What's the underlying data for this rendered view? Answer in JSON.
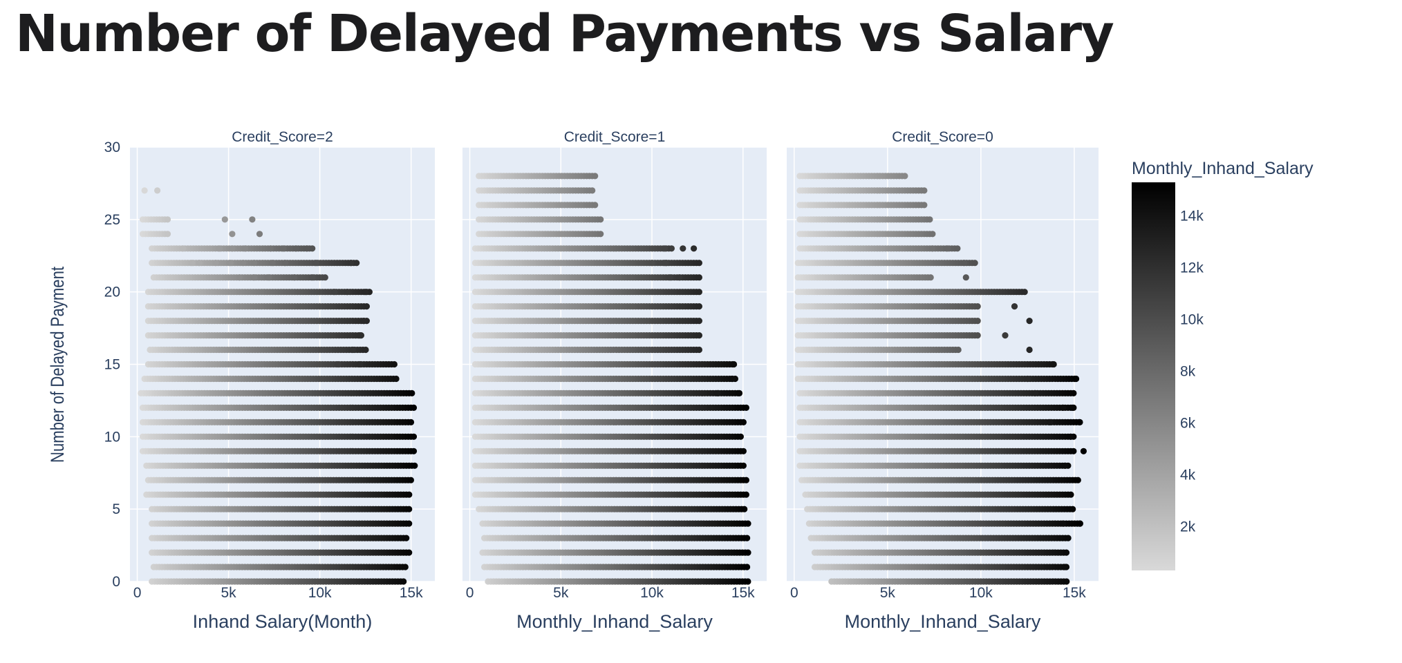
{
  "page": {
    "title": "Number of Delayed Payments vs Salary"
  },
  "chart_data": {
    "type": "scatter",
    "facets": [
      {
        "label": "Credit_Score=2",
        "xlabel": "Inhand Salary(Month)",
        "rows": [
          [
            0,
            0.8,
            14.6
          ],
          [
            1,
            0.9,
            14.8
          ],
          [
            2,
            0.8,
            14.9
          ],
          [
            3,
            0.8,
            14.8
          ],
          [
            4,
            0.8,
            15.0
          ],
          [
            5,
            0.8,
            15.0
          ],
          [
            6,
            0.5,
            15.0
          ],
          [
            7,
            0.6,
            15.0
          ],
          [
            8,
            0.5,
            15.2
          ],
          [
            9,
            0.3,
            15.2
          ],
          [
            10,
            0.3,
            15.2
          ],
          [
            11,
            0.3,
            15.1
          ],
          [
            12,
            0.3,
            15.2
          ],
          [
            13,
            0.2,
            15.1
          ],
          [
            14,
            0.4,
            14.2
          ],
          [
            15,
            0.6,
            14.2
          ],
          [
            16,
            0.7,
            12.6
          ],
          [
            17,
            0.6,
            12.3
          ],
          [
            18,
            0.6,
            12.7
          ],
          [
            19,
            0.6,
            12.6
          ],
          [
            20,
            0.6,
            12.8
          ],
          [
            21,
            0.9,
            10.3
          ],
          [
            22,
            0.8,
            12.1
          ],
          [
            23,
            0.8,
            9.7
          ],
          [
            24,
            0.3,
            1.8
          ],
          [
            25,
            0.3,
            1.8
          ]
        ],
        "extra_points": [
          [
            0.4,
            27
          ],
          [
            1.1,
            27
          ],
          [
            4.8,
            25
          ],
          [
            6.3,
            25
          ],
          [
            5.2,
            24
          ],
          [
            6.7,
            24
          ],
          [
            4.5,
            23
          ],
          [
            5.2,
            23
          ],
          [
            5.9,
            23
          ],
          [
            7.3,
            23
          ],
          [
            8.0,
            23
          ],
          [
            8.7,
            23
          ],
          [
            9.3,
            23
          ],
          [
            2.5,
            23
          ],
          [
            3.0,
            22
          ],
          [
            3.4,
            22
          ],
          [
            4.3,
            22
          ],
          [
            5.1,
            22
          ],
          [
            5.8,
            22
          ],
          [
            6.4,
            22
          ],
          [
            7.4,
            22
          ],
          [
            8.1,
            22
          ],
          [
            9.8,
            22
          ],
          [
            11.7,
            22
          ],
          [
            5.6,
            21
          ],
          [
            6.4,
            21
          ],
          [
            7.2,
            21
          ],
          [
            8.6,
            21
          ],
          [
            9.6,
            21
          ],
          [
            10.8,
            20
          ],
          [
            11.5,
            20
          ],
          [
            12.5,
            20
          ],
          [
            12.4,
            18
          ],
          [
            12.2,
            17
          ],
          [
            11.8,
            16
          ],
          [
            11.0,
            15
          ],
          [
            12.2,
            15
          ]
        ]
      },
      {
        "label": "Credit_Score=1",
        "xlabel": "Monthly_Inhand_Salary",
        "rows": [
          [
            0,
            1.0,
            15.3
          ],
          [
            1,
            0.8,
            15.3
          ],
          [
            2,
            0.7,
            15.3
          ],
          [
            3,
            0.8,
            15.3
          ],
          [
            4,
            0.7,
            15.3
          ],
          [
            5,
            0.5,
            15.1
          ],
          [
            6,
            0.3,
            15.2
          ],
          [
            7,
            0.3,
            15.2
          ],
          [
            8,
            0.3,
            15.1
          ],
          [
            9,
            0.3,
            15.1
          ],
          [
            10,
            0.3,
            15.0
          ],
          [
            11,
            0.3,
            15.1
          ],
          [
            12,
            0.3,
            15.3
          ],
          [
            13,
            0.3,
            14.8
          ],
          [
            14,
            0.3,
            14.6
          ],
          [
            15,
            0.3,
            14.5
          ],
          [
            16,
            0.3,
            12.7
          ],
          [
            17,
            0.3,
            12.7
          ],
          [
            18,
            0.3,
            12.7
          ],
          [
            19,
            0.3,
            12.7
          ],
          [
            20,
            0.3,
            12.7
          ],
          [
            21,
            0.3,
            12.7
          ],
          [
            22,
            0.3,
            12.7
          ],
          [
            23,
            0.3,
            11.1
          ],
          [
            24,
            0.5,
            7.3
          ],
          [
            25,
            0.5,
            7.3
          ],
          [
            26,
            0.5,
            7.0
          ],
          [
            27,
            0.5,
            6.8
          ],
          [
            28,
            0.5,
            6.9
          ]
        ],
        "extra_points": [
          [
            12.3,
            23
          ],
          [
            11.7,
            23
          ],
          [
            10.7,
            23
          ],
          [
            10.0,
            22
          ],
          [
            10.8,
            22
          ],
          [
            11.5,
            21
          ],
          [
            11.0,
            21
          ],
          [
            14.5,
            15
          ],
          [
            14.4,
            14
          ],
          [
            13.6,
            13
          ],
          [
            14.8,
            13
          ],
          [
            10.7,
            22
          ]
        ]
      },
      {
        "label": "Credit_Score=0",
        "xlabel": "Monthly_Inhand_Salary",
        "rows": [
          [
            0,
            2.0,
            14.6
          ],
          [
            1,
            1.1,
            14.6
          ],
          [
            2,
            1.1,
            14.7
          ],
          [
            3,
            0.9,
            14.8
          ],
          [
            4,
            0.8,
            15.4
          ],
          [
            5,
            0.7,
            15.0
          ],
          [
            6,
            0.6,
            14.9
          ],
          [
            7,
            0.4,
            15.1
          ],
          [
            8,
            0.3,
            14.8
          ],
          [
            9,
            0.3,
            15.1
          ],
          [
            10,
            0.3,
            15.1
          ],
          [
            11,
            0.3,
            15.4
          ],
          [
            12,
            0.3,
            15.0
          ],
          [
            13,
            0.3,
            15.0
          ],
          [
            14,
            0.2,
            15.1
          ],
          [
            15,
            0.2,
            13.9
          ],
          [
            16,
            0.2,
            8.8
          ],
          [
            17,
            0.2,
            9.9
          ],
          [
            18,
            0.2,
            9.9
          ],
          [
            19,
            0.2,
            9.9
          ],
          [
            20,
            0.2,
            12.4
          ],
          [
            21,
            0.2,
            7.4
          ],
          [
            22,
            0.2,
            9.7
          ],
          [
            23,
            0.3,
            8.8
          ],
          [
            24,
            0.3,
            7.5
          ],
          [
            25,
            0.3,
            7.3
          ],
          [
            26,
            0.3,
            7.0
          ],
          [
            27,
            0.3,
            7.0
          ],
          [
            28,
            0.3,
            6.0
          ]
        ],
        "extra_points": [
          [
            7.4,
            23
          ],
          [
            8.2,
            23
          ],
          [
            9.1,
            22
          ],
          [
            9.2,
            21
          ],
          [
            13.9,
            15
          ],
          [
            12.5,
            14
          ],
          [
            15.1,
            14
          ],
          [
            12.9,
            13
          ],
          [
            14.4,
            12
          ],
          [
            14.9,
            12
          ],
          [
            13.7,
            11
          ],
          [
            15.3,
            11
          ],
          [
            14.8,
            10
          ],
          [
            15.5,
            9
          ],
          [
            14.5,
            8
          ],
          [
            15.2,
            7
          ],
          [
            14.4,
            4
          ],
          [
            15.3,
            4
          ],
          [
            14.5,
            1
          ],
          [
            11.8,
            19
          ],
          [
            12.6,
            18
          ],
          [
            11.3,
            17
          ],
          [
            12.6,
            16
          ]
        ]
      }
    ],
    "ylabel": "Number of Delayed Payment",
    "xlim": [
      -0.4,
      16.3
    ],
    "ylim": [
      0,
      30
    ],
    "xticks": [
      0,
      5,
      10,
      15
    ],
    "xtick_labels": [
      "0",
      "5k",
      "10k",
      "15k"
    ],
    "yticks": [
      0,
      5,
      10,
      15,
      20,
      25,
      30
    ],
    "colorbar": {
      "title": "Monthly_Inhand_Salary",
      "range": [
        300,
        15300
      ],
      "ticks": [
        2000,
        4000,
        6000,
        8000,
        10000,
        12000,
        14000
      ],
      "tick_labels": [
        "2k",
        "4k",
        "6k",
        "8k",
        "10k",
        "12k",
        "14k"
      ],
      "color_low": "#d9d9d9",
      "color_high": "#000000"
    },
    "plot_background": "#e5ecf6",
    "grid": true
  }
}
